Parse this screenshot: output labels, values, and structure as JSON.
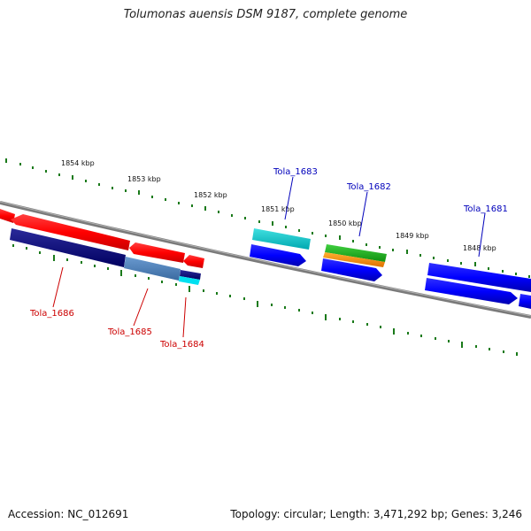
{
  "title": "Tolumonas auensis DSM 9187, complete genome",
  "footer": {
    "accession": "Accession: NC_012691",
    "stats": "Topology: circular; Length: 3,471,292 bp; Genes: 3,246"
  },
  "scale_labels": [
    "1854 kbp",
    "1853 kbp",
    "1852 kbp",
    "1851 kbp",
    "1850 kbp",
    "1849 kbp",
    "1848 kbp"
  ],
  "gene_labels": {
    "tola_1686": "Tola_1686",
    "tola_1685": "Tola_1685",
    "tola_1684": "Tola_1684",
    "tola_1683": "Tola_1683",
    "tola_1682": "Tola_1682",
    "tola_1681": "Tola_1681"
  },
  "colors": {
    "reverse_strand_label": "#cc0000",
    "forward_strand_label": "#0000bb",
    "scale_ticks": "#1a7a1a",
    "backbone": "#808080"
  }
}
